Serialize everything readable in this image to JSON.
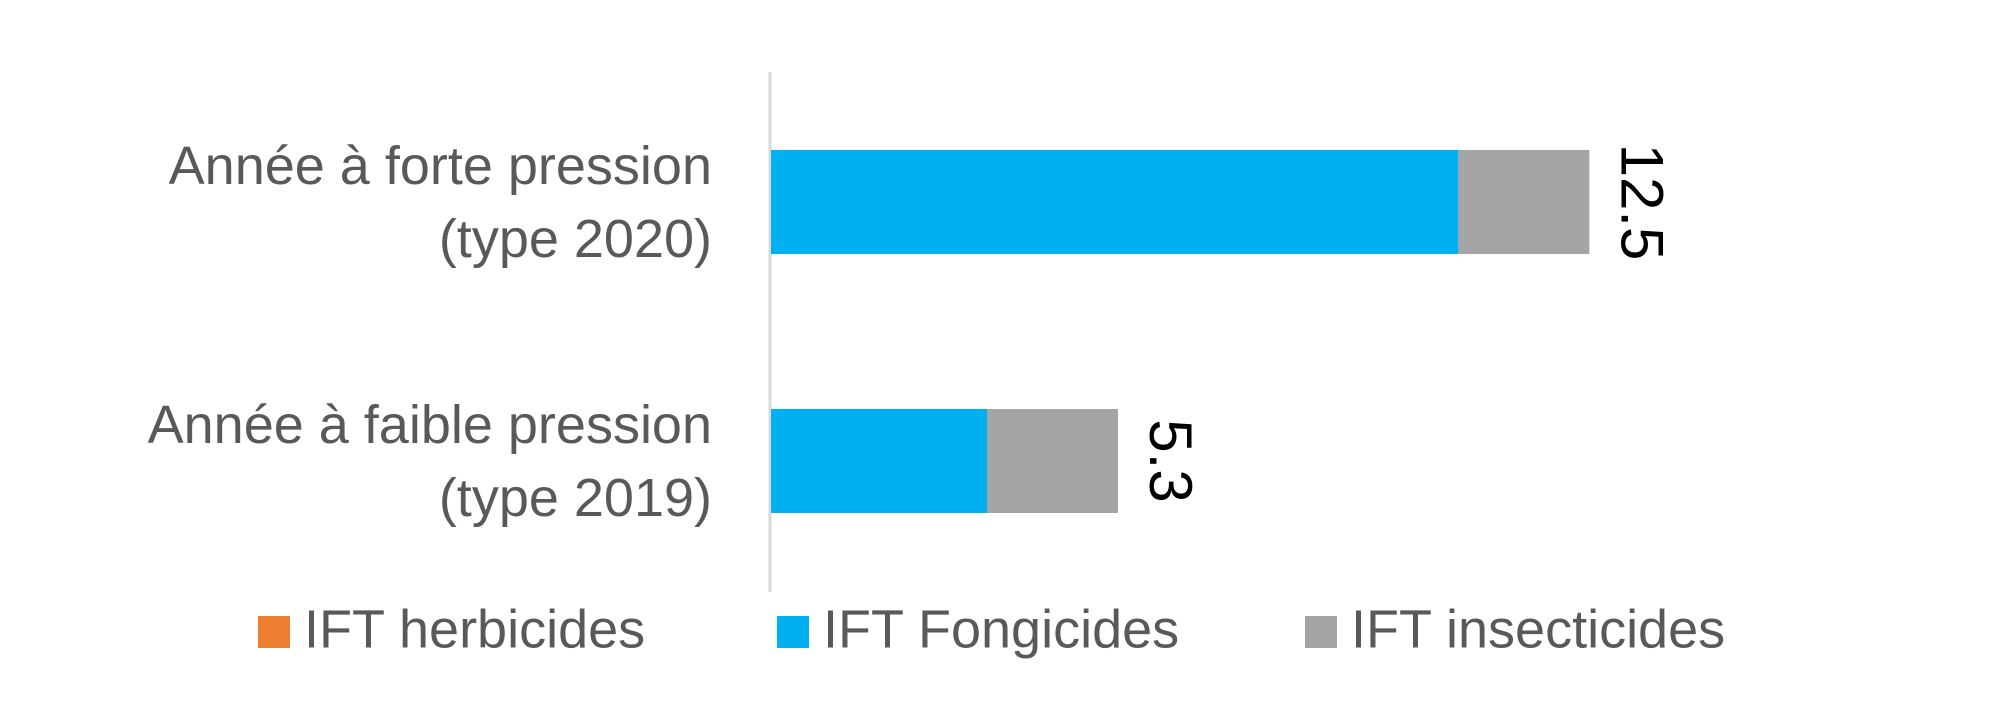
{
  "chart_data": {
    "type": "bar",
    "orientation": "horizontal",
    "stacked": true,
    "categories": [
      "Année à forte pression (type 2020)",
      "Année à faible pression (type 2019)"
    ],
    "category_lines": [
      [
        "Année à forte pression",
        "(type 2020)"
      ],
      [
        "Année à faible pression",
        "(type 2019)"
      ]
    ],
    "series": [
      {
        "name": "IFT herbicides",
        "color": "#ED7D31",
        "values": [
          0,
          0
        ]
      },
      {
        "name": "IFT Fongicides",
        "color": "#00B0F0",
        "values": [
          10.5,
          3.3
        ]
      },
      {
        "name": "IFT insecticides",
        "color": "#A5A5A5",
        "values": [
          2.0,
          2.0
        ]
      }
    ],
    "totals": [
      "12.5",
      "5.3"
    ],
    "xlim": [
      0,
      15
    ],
    "grid": false,
    "legend_position": "bottom"
  }
}
